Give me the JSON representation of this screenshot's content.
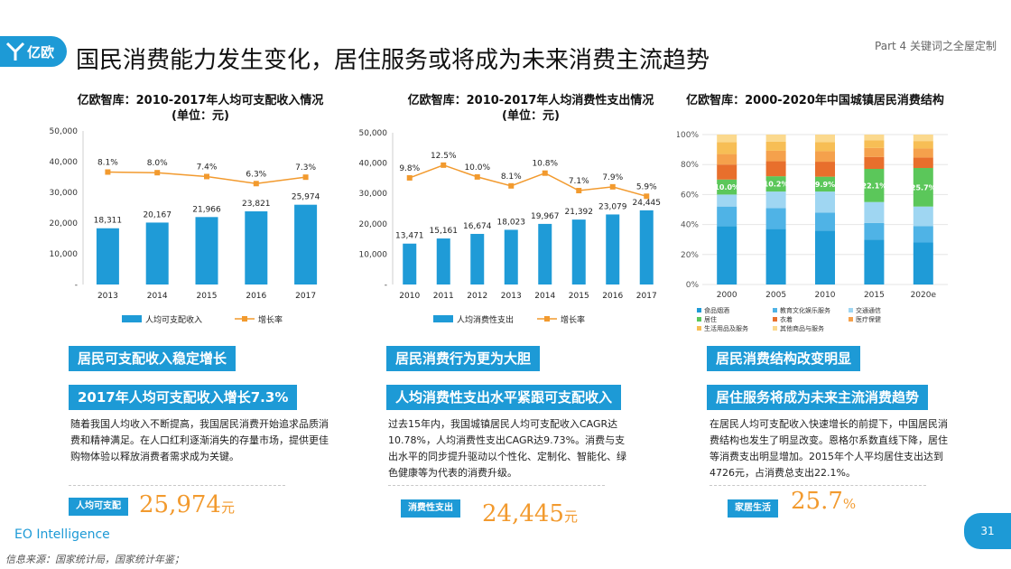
{
  "header": {
    "logo_text": "亿欧",
    "title": "国民消费能力发生变化，居住服务或将成为未来消费主流趋势",
    "part_label": "Part 4 关键词之全屋定制"
  },
  "colors": {
    "accent": "#1d9ad6",
    "orange": "#f29a2e",
    "bar_blue": "#1f9bd7"
  },
  "panels": [
    {
      "title_line1": "亿欧智库：2010-2017年人均可支配收入情况",
      "title_line2": "(单位：元)",
      "highlight": "居民可支配收入稳定增长",
      "headline": "2017年人均可支配收入增长7.3%",
      "paragraph": "随着我国人均收入不断提高，我国居民消费开始追求品质消费和精神满足。在人口红利逐渐消失的存量市场，提供更佳购物体验以释放消费者需求成为关键。",
      "tag": "人均可支配",
      "big_number": "25,974",
      "unit": "元"
    },
    {
      "title_line1": "亿欧智库：2010-2017年人均消费性支出情况",
      "title_line2": "(单位：元)",
      "highlight": "居民消费行为更为大胆",
      "headline": "人均消费性支出水平紧跟可支配收入",
      "paragraph": "过去15年内，我国城镇居民人均可支配收入CAGR达10.78%，人均消费性支出CAGR达9.73%。消费与支出水平的同步提升驱动以个性化、定制化、智能化、绿色健康等为代表的消费升级。",
      "tag": "消费性支出",
      "big_number": "24,445",
      "unit": "元"
    },
    {
      "title_line1": "亿欧智库：2000-2020年中国城镇居民消费结构",
      "title_line2": "",
      "highlight": "居民消费结构改变明显",
      "headline": "居住服务将成为未来主流消费趋势",
      "paragraph": "在居民人均可支配收入快速增长的前提下，中国居民消费结构也发生了明显改变。恩格尔系数直线下降，居住等消费支出明显增加。2015年个人平均居住支出达到4726元，占消费总支出22.1%。",
      "tag": "家居生活",
      "big_number": "25.7",
      "unit": "%"
    }
  ],
  "chart_data": [
    {
      "type": "bar",
      "categories": [
        "2013",
        "2014",
        "2015",
        "2016",
        "2017"
      ],
      "series": [
        {
          "name": "人均可支配收入",
          "values": [
            18311,
            20167,
            21966,
            23821,
            25974
          ],
          "labels": [
            "18,311",
            "20,167",
            "21,966",
            "23,821",
            "25,974"
          ]
        },
        {
          "name": "增长率",
          "kind": "line",
          "values": [
            8.1,
            8.0,
            7.4,
            6.3,
            7.3
          ],
          "labels": [
            "8.1%",
            "8.0%",
            "7.4%",
            "6.3%",
            "7.3%"
          ]
        }
      ],
      "yticks": [
        "50,000",
        "40,000",
        "30,000",
        "20,000",
        "10,000",
        "-"
      ],
      "ylim": [
        0,
        50000
      ],
      "legend_position": "bottom"
    },
    {
      "type": "bar",
      "categories": [
        "2010",
        "2011",
        "2012",
        "2013",
        "2014",
        "2015",
        "2016",
        "2017"
      ],
      "series": [
        {
          "name": "人均消费性支出",
          "values": [
            13471,
            15161,
            16674,
            18023,
            19967,
            21392,
            23079,
            24445
          ],
          "labels": [
            "13,471",
            "15,161",
            "16,674",
            "18,023",
            "19,967",
            "21,392",
            "23,079",
            "24,445"
          ]
        },
        {
          "name": "增长率",
          "kind": "line",
          "values": [
            9.8,
            12.5,
            10.0,
            8.1,
            10.8,
            7.1,
            7.9,
            5.9
          ],
          "labels": [
            "9.8%",
            "12.5%",
            "10.0%",
            "8.1%",
            "10.8%",
            "7.1%",
            "7.9%",
            "5.9%"
          ]
        }
      ],
      "yticks": [
        "50,000",
        "40,000",
        "30,000",
        "20,000",
        "10,000",
        "-"
      ],
      "ylim": [
        0,
        50000
      ],
      "legend_position": "bottom"
    },
    {
      "type": "bar",
      "stacked": true,
      "categories": [
        "2000",
        "2005",
        "2010",
        "2015",
        "2020e"
      ],
      "yticks": [
        "100%",
        "80%",
        "60%",
        "40%",
        "20%",
        "0%"
      ],
      "ylim": [
        0,
        100
      ],
      "series": [
        {
          "name": "食品烟酒",
          "color": "#1f9bd7",
          "values": [
            39,
            37,
            36,
            30,
            28
          ]
        },
        {
          "name": "教育文化娱乐服务",
          "color": "#4fb3e6",
          "values": [
            13,
            14,
            12,
            11,
            11
          ]
        },
        {
          "name": "交通通信",
          "color": "#9fd6f2",
          "values": [
            8,
            11,
            14,
            14,
            13
          ]
        },
        {
          "name": "居住",
          "color": "#5bc75a",
          "values": [
            10,
            10.2,
            9.9,
            22.1,
            25.7
          ],
          "labels": [
            "10.0%",
            "10.2%",
            "9.9%",
            "22.1%",
            "25.7%"
          ]
        },
        {
          "name": "衣着",
          "color": "#e86f2c",
          "values": [
            10,
            10,
            10,
            8,
            7
          ]
        },
        {
          "name": "医疗保健",
          "color": "#f5a14c",
          "values": [
            7,
            7,
            7,
            6,
            6
          ]
        },
        {
          "name": "生活用品及服务",
          "color": "#f7be55",
          "values": [
            8,
            6,
            6,
            5,
            5
          ]
        },
        {
          "name": "其他商品与服务",
          "color": "#fbd98e",
          "values": [
            5,
            4.8,
            5.1,
            3.9,
            4.3
          ]
        }
      ],
      "legend_position": "bottom"
    }
  ],
  "footer": {
    "brand": "EO Intelligence",
    "source": "信息来源：国家统计局，国家统计年鉴；",
    "page": "31"
  }
}
